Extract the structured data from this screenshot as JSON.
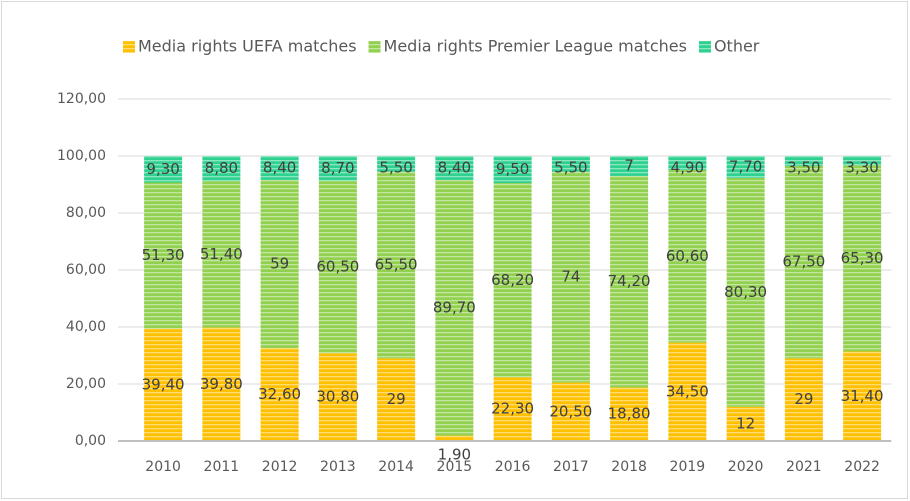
{
  "chart_data": {
    "type": "stacked_bar",
    "categories": [
      "2010",
      "2011",
      "2012",
      "2013",
      "2014",
      "2015",
      "2016",
      "2017",
      "2018",
      "2019",
      "2020",
      "2021",
      "2022"
    ],
    "series": [
      {
        "name": "Media rights UEFA matches",
        "color": "#ffc000",
        "values": [
          39.4,
          39.8,
          32.6,
          30.8,
          29,
          1.9,
          22.3,
          20.5,
          18.8,
          34.5,
          12,
          29,
          31.4
        ],
        "value_labels": [
          "39,40",
          "39,80",
          "32,60",
          "30,80",
          "29",
          "1,90",
          "22,30",
          "20,50",
          "18,80",
          "34,50",
          "12",
          "29",
          "31,40"
        ]
      },
      {
        "name": "Media rights Premier League matches",
        "color": "#92d050",
        "values": [
          51.3,
          51.4,
          59,
          60.5,
          65.5,
          89.7,
          68.2,
          74,
          74.2,
          60.6,
          80.3,
          67.5,
          65.3
        ],
        "value_labels": [
          "51,30",
          "51,40",
          "59",
          "60,50",
          "65,50",
          "89,70",
          "68,20",
          "74",
          "74,20",
          "60,60",
          "80,30",
          "67,50",
          "65,30"
        ]
      },
      {
        "name": "Other",
        "color": "#2ed18f",
        "values": [
          9.3,
          8.8,
          8.4,
          8.7,
          5.5,
          8.4,
          9.5,
          5.5,
          7,
          4.9,
          7.7,
          3.5,
          3.3
        ],
        "value_labels": [
          "9,30",
          "8,80",
          "8,40",
          "8,70",
          "5,50",
          "8,40",
          "9,50",
          "5,50",
          "7",
          "4,90",
          "7,70",
          "3,50",
          "3,30"
        ]
      }
    ],
    "ylim": [
      0,
      120
    ],
    "yticks": [
      {
        "value": 0,
        "label": "0,00"
      },
      {
        "value": 20,
        "label": "20,00"
      },
      {
        "value": 40,
        "label": "40,00"
      },
      {
        "value": 60,
        "label": "60,00"
      },
      {
        "value": 80,
        "label": "80,00"
      },
      {
        "value": 100,
        "label": "100,00"
      },
      {
        "value": 120,
        "label": "120,00"
      }
    ],
    "grid": true,
    "legend": "top"
  }
}
